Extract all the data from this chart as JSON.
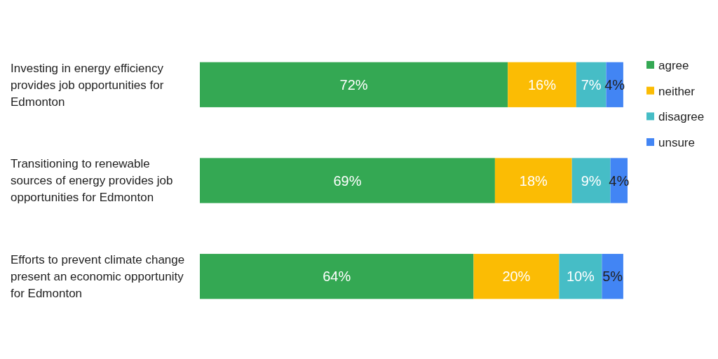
{
  "chart_data": {
    "type": "bar",
    "orientation": "horizontal",
    "stacked": true,
    "legend": "right",
    "categories": [
      "Investing in energy efficiency provides job opportunities for Edmonton",
      "Transitioning to renewable sources of energy provides job opportunities for Edmonton",
      "Efforts to prevent climate change present an economic opportunity for Edmonton"
    ],
    "series": [
      {
        "name": "agree",
        "color": "#34a853",
        "values": [
          72,
          69,
          64
        ],
        "value_labels": [
          "72%",
          "69%",
          "64%"
        ]
      },
      {
        "name": "neither",
        "color": "#fbbc04",
        "values": [
          16,
          18,
          20
        ],
        "value_labels": [
          "16%",
          "18%",
          "20%"
        ]
      },
      {
        "name": "disagree",
        "color": "#46bdc6",
        "values": [
          7,
          9,
          10
        ],
        "value_labels": [
          "7%",
          "9%",
          "10%"
        ]
      },
      {
        "name": "unsure",
        "color": "#4285f4",
        "values": [
          4,
          4,
          5
        ],
        "value_labels": [
          "4%",
          "4%",
          "5%"
        ]
      }
    ]
  }
}
